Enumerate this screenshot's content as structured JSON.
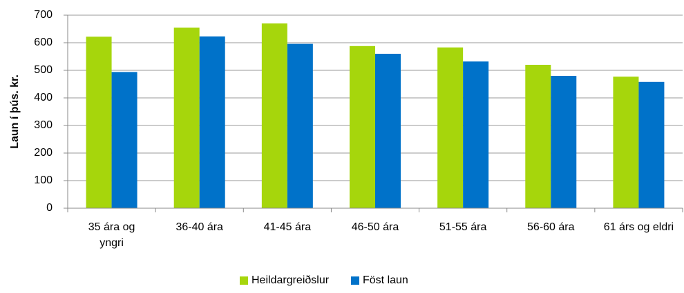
{
  "chart_data": {
    "type": "bar",
    "y_label": "Laun í þús. kr.",
    "categories": [
      "35 ára og yngri",
      "36-40 ára",
      "41-45 ára",
      "46-50 ára",
      "51-55 ára",
      "56-60 ára",
      "61 árs og eldri"
    ],
    "series": [
      {
        "name": "Heildargreiðslur",
        "color": "#a6d60c",
        "values": [
          622,
          655,
          670,
          588,
          583,
          520,
          477
        ]
      },
      {
        "name": "Föst laun",
        "color": "#0072c9",
        "values": [
          494,
          623,
          596,
          560,
          532,
          480,
          458
        ]
      }
    ],
    "ylim": [
      0,
      700
    ],
    "yticks": [
      0,
      100,
      200,
      300,
      400,
      500,
      600,
      700
    ],
    "grid": true,
    "legend": "bottom"
  }
}
